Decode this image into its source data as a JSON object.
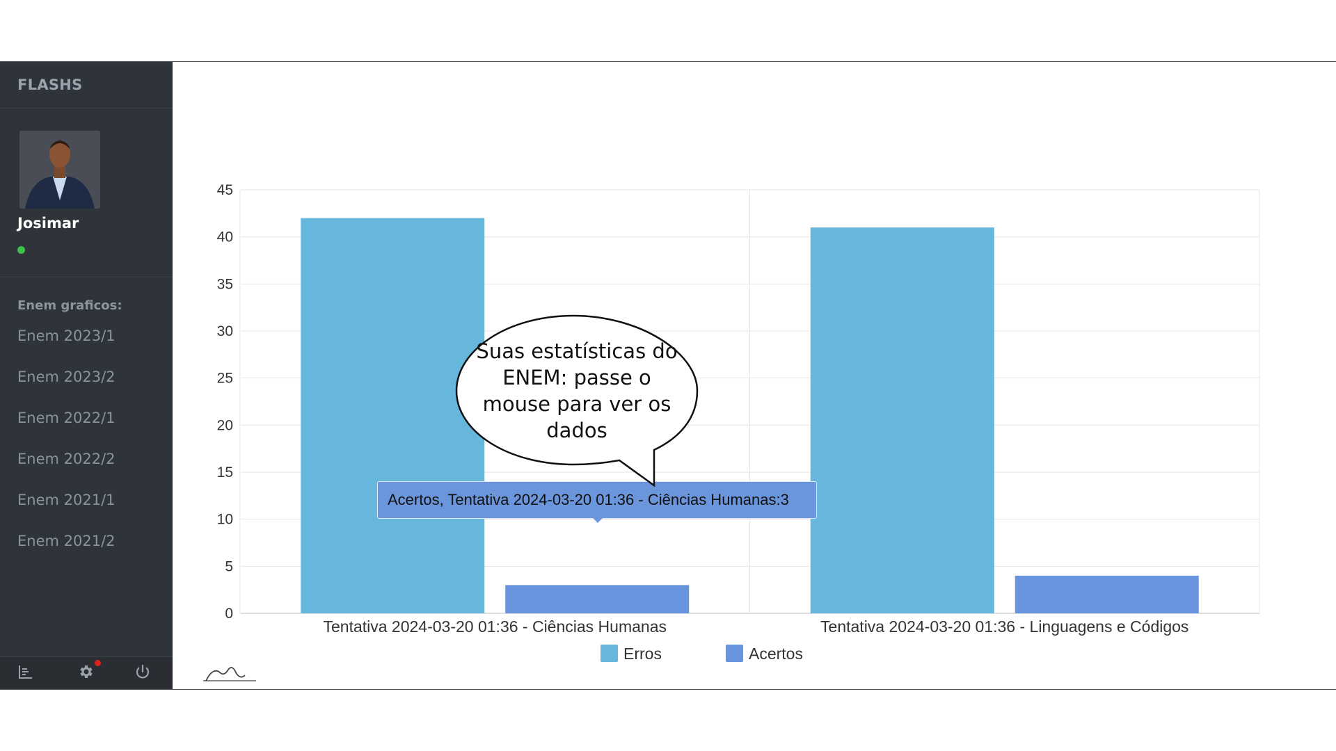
{
  "sidebar": {
    "brand": "FLASHS",
    "user": {
      "name": "Josimar",
      "status_color": "#3ec24a"
    },
    "menu_heading": "Enem graficos:",
    "items": [
      {
        "label": "Enem 2023/1"
      },
      {
        "label": "Enem 2023/2"
      },
      {
        "label": "Enem 2022/1"
      },
      {
        "label": "Enem 2022/2"
      },
      {
        "label": "Enem 2021/1"
      },
      {
        "label": "Enem 2021/2"
      }
    ],
    "bottom_icons": [
      "chart-icon",
      "gear-icon",
      "power-icon"
    ]
  },
  "chart_data": {
    "type": "bar",
    "categories": [
      "Tentativa 2024-03-20 01:36 - Ciências Humanas",
      "Tentativa 2024-03-20 01:36 - Linguagens e Códigos"
    ],
    "series": [
      {
        "name": "Erros",
        "values": [
          42,
          41
        ],
        "color": "#67b6dc"
      },
      {
        "name": "Acertos",
        "values": [
          3,
          4
        ],
        "color": "#6794dc"
      }
    ],
    "ylim": [
      0,
      45
    ],
    "yticks": [
      0,
      5,
      10,
      15,
      20,
      25,
      30,
      35,
      40,
      45
    ],
    "grid": true,
    "legend": "bottom"
  },
  "tooltip": {
    "text": "Acertos, Tentativa 2024-03-20 01:36 - Ciências Humanas:3"
  },
  "callout": {
    "text": "Suas estatísticas do ENEM: passe o mouse para ver os dados"
  },
  "colors": {
    "sidebar": "#2f343a",
    "accent_green": "#3ec24a",
    "notification": "#d9261c"
  }
}
